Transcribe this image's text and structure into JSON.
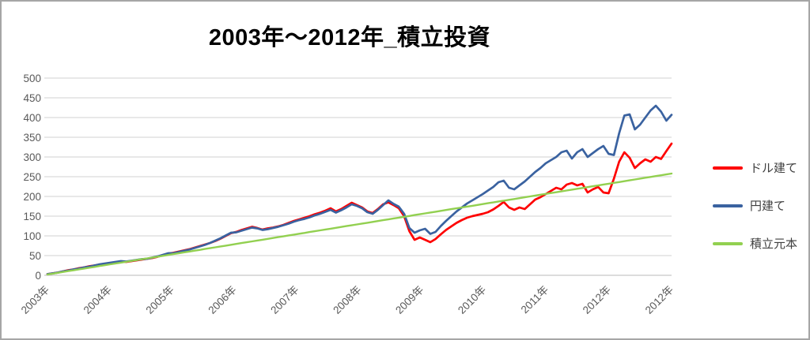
{
  "title": "2003年〜2012年_積立投資",
  "colors": {
    "grid": "#d9d9d9",
    "axis_line": "#c6c6c6",
    "tick_label": "#595959",
    "border": "#a6a6a6"
  },
  "chart_data": {
    "type": "line",
    "title": "2003年〜2012年_積立投資",
    "xlabel": "",
    "ylabel": "",
    "ylim": [
      0,
      500
    ],
    "y_ticks": [
      0,
      50,
      100,
      150,
      200,
      250,
      300,
      350,
      400,
      450,
      500
    ],
    "x_tick_labels": [
      "2003年",
      "2004年",
      "2005年",
      "2006年",
      "2007年",
      "2008年",
      "2009年",
      "2010年",
      "2011年",
      "2012年",
      "2012年"
    ],
    "grid": true,
    "legend_position": "right",
    "series": [
      {
        "key": "dollar",
        "name": "ドル建て",
        "color": "#fe0000",
        "values": [
          3,
          5,
          7,
          10,
          13,
          15,
          18,
          20,
          23,
          25,
          27,
          29,
          31,
          33,
          35,
          34,
          36,
          38,
          40,
          42,
          44,
          47,
          51,
          55,
          57,
          60,
          63,
          66,
          70,
          74,
          78,
          82,
          87,
          93,
          100,
          107,
          110,
          115,
          119,
          123,
          120,
          116,
          119,
          121,
          124,
          128,
          133,
          138,
          142,
          146,
          150,
          155,
          159,
          164,
          170,
          162,
          168,
          176,
          184,
          178,
          172,
          162,
          158,
          168,
          180,
          185,
          178,
          170,
          150,
          112,
          90,
          96,
          90,
          84,
          92,
          104,
          115,
          124,
          133,
          140,
          146,
          150,
          153,
          156,
          160,
          167,
          176,
          186,
          172,
          166,
          172,
          168,
          180,
          192,
          198,
          206,
          214,
          222,
          218,
          230,
          234,
          228,
          232,
          210,
          218,
          224,
          210,
          208,
          245,
          288,
          312,
          298,
          272,
          284,
          294,
          288,
          300,
          295,
          315,
          334
        ]
      },
      {
        "key": "yen",
        "name": "円建て",
        "color": "#3a62a0",
        "values": [
          3,
          5,
          7,
          10,
          12,
          15,
          17,
          20,
          22,
          25,
          28,
          30,
          32,
          34,
          36,
          35,
          37,
          39,
          41,
          42,
          45,
          48,
          52,
          56,
          56,
          59,
          62,
          65,
          69,
          73,
          77,
          82,
          88,
          94,
          101,
          108,
          109,
          113,
          117,
          121,
          119,
          115,
          117,
          120,
          123,
          127,
          131,
          136,
          140,
          143,
          147,
          152,
          156,
          161,
          166,
          159,
          165,
          172,
          180,
          176,
          170,
          160,
          156,
          166,
          178,
          190,
          181,
          174,
          156,
          120,
          108,
          114,
          118,
          105,
          110,
          125,
          138,
          150,
          162,
          172,
          182,
          190,
          198,
          206,
          215,
          224,
          236,
          240,
          222,
          218,
          228,
          238,
          250,
          262,
          272,
          284,
          292,
          300,
          312,
          316,
          296,
          312,
          320,
          300,
          310,
          320,
          328,
          308,
          305,
          360,
          405,
          408,
          370,
          382,
          400,
          418,
          430,
          415,
          392,
          407
        ]
      },
      {
        "key": "principal",
        "name": "積立元本",
        "color": "#92d050",
        "values": [
          2.2,
          4.3,
          6.5,
          8.6,
          10.8,
          12.9,
          15.1,
          17.2,
          19.4,
          21.5,
          23.7,
          25.8,
          28,
          30.1,
          32.3,
          34.4,
          36.6,
          38.7,
          40.9,
          43,
          45.2,
          47.3,
          49.5,
          51.6,
          53.8,
          55.9,
          58.1,
          60.2,
          62.4,
          64.5,
          66.7,
          68.8,
          71,
          73.1,
          75.3,
          77.4,
          79.6,
          81.7,
          83.9,
          86,
          88.2,
          90.3,
          92.5,
          94.6,
          96.8,
          98.9,
          101.1,
          103.2,
          105.4,
          107.5,
          109.7,
          111.8,
          114,
          116.1,
          118.3,
          120.4,
          122.6,
          124.7,
          126.9,
          129,
          131.2,
          133.3,
          135.5,
          137.6,
          139.8,
          141.9,
          144.1,
          146.2,
          148.4,
          150.5,
          152.7,
          154.8,
          157,
          159.1,
          161.3,
          163.4,
          165.6,
          167.7,
          169.9,
          172,
          174.2,
          176.3,
          178.5,
          180.6,
          182.8,
          184.9,
          187.1,
          189.2,
          191.4,
          193.5,
          195.7,
          197.8,
          200,
          202.1,
          204.3,
          206.4,
          208.6,
          210.7,
          212.9,
          215,
          217.2,
          219.3,
          221.5,
          223.6,
          225.8,
          227.9,
          230.1,
          232.2,
          234.4,
          236.5,
          238.7,
          240.8,
          243,
          245.1,
          247.3,
          249.4,
          251.6,
          253.7,
          255.9,
          258
        ]
      }
    ]
  }
}
